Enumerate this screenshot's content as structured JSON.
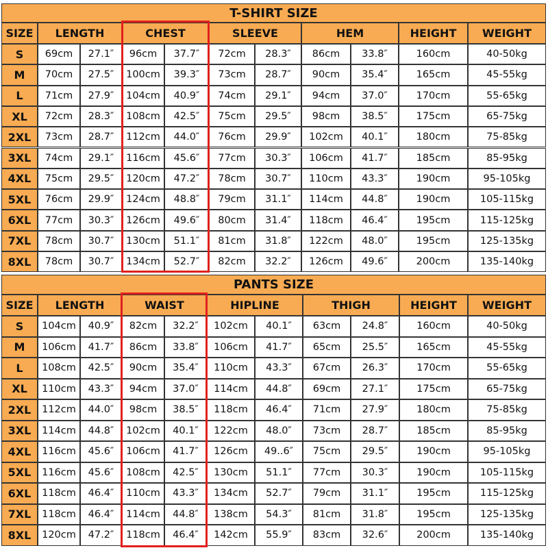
{
  "tshirt": {
    "title": "T-SHIRT SIZE",
    "headers": [
      "SIZE",
      "LENGTH",
      "CHEST",
      "SLEEVE",
      "HEM",
      "HEIGHT",
      "WEIGHT"
    ],
    "rows": [
      [
        "S",
        "69cm",
        "27.1″",
        "96cm",
        "37.7″",
        "72cm",
        "28.3″",
        "86cm",
        "33.8″",
        "160cm",
        "40-50kg"
      ],
      [
        "M",
        "70cm",
        "27.5″",
        "100cm",
        "39.3″",
        "73cm",
        "28.7″",
        "90cm",
        "35.4″",
        "165cm",
        "45-55kg"
      ],
      [
        "L",
        "71cm",
        "27.9″",
        "104cm",
        "40.9″",
        "74cm",
        "29.1″",
        "94cm",
        "37.0″",
        "170cm",
        "55-65kg"
      ],
      [
        "XL",
        "72cm",
        "28.3″",
        "108cm",
        "42.5″",
        "75cm",
        "29.5″",
        "98cm",
        "38.5″",
        "175cm",
        "65-75kg"
      ],
      [
        "2XL",
        "73cm",
        "28.7″",
        "112cm",
        "44.0″",
        "76cm",
        "29.9″",
        "102cm",
        "40.1″",
        "180cm",
        "75-85kg"
      ],
      [
        "3XL",
        "74cm",
        "29.1″",
        "116cm",
        "45.6″",
        "77cm",
        "30.3″",
        "106cm",
        "41.7″",
        "185cm",
        "85-95kg"
      ],
      [
        "4XL",
        "75cm",
        "29.5″",
        "120cm",
        "47.2″",
        "78cm",
        "30.7″",
        "110cm",
        "43.3″",
        "190cm",
        "95-105kg"
      ],
      [
        "5XL",
        "76cm",
        "29.9″",
        "124cm",
        "48.8″",
        "79cm",
        "31.1″",
        "114cm",
        "44.8″",
        "190cm",
        "105-115kg"
      ],
      [
        "6XL",
        "77cm",
        "30.3″",
        "126cm",
        "49.6″",
        "80cm",
        "31.4″",
        "118cm",
        "46.4″",
        "195cm",
        "115-125kg"
      ],
      [
        "7XL",
        "78cm",
        "30.7″",
        "130cm",
        "51.1″",
        "81cm",
        "31.8″",
        "122cm",
        "48.0″",
        "195cm",
        "125-135kg"
      ],
      [
        "8XL",
        "78cm",
        "30.7″",
        "134cm",
        "52.7″",
        "82cm",
        "32.2″",
        "126cm",
        "49.6″",
        "200cm",
        "135-140kg"
      ]
    ]
  },
  "pants": {
    "title": "PANTS SIZE",
    "headers": [
      "SIZE",
      "LENGTH",
      "WAIST",
      "HIPLINE",
      "THIGH",
      "HEIGHT",
      "WEIGHT"
    ],
    "rows": [
      [
        "S",
        "104cm",
        "40.9″",
        "82cm",
        "32.2″",
        "102cm",
        "40.1″",
        "63cm",
        "24.8″",
        "160cm",
        "40-50kg"
      ],
      [
        "M",
        "106cm",
        "41.7″",
        "86cm",
        "33.8″",
        "106cm",
        "41.7″",
        "65cm",
        "25.5″",
        "165cm",
        "45-55kg"
      ],
      [
        "L",
        "108cm",
        "42.5″",
        "90cm",
        "35.4″",
        "110cm",
        "43.3″",
        "67cm",
        "26.3″",
        "170cm",
        "55-65kg"
      ],
      [
        "XL",
        "110cm",
        "43.3″",
        "94cm",
        "37.0″",
        "114cm",
        "44.8″",
        "69cm",
        "27.1″",
        "175cm",
        "65-75kg"
      ],
      [
        "2XL",
        "112cm",
        "44.0″",
        "98cm",
        "38.5″",
        "118cm",
        "46.4″",
        "71cm",
        "27.9″",
        "180cm",
        "75-85kg"
      ],
      [
        "3XL",
        "114cm",
        "44.8″",
        "102cm",
        "40.1″",
        "122cm",
        "48.0″",
        "73cm",
        "28.7″",
        "185cm",
        "85-95kg"
      ],
      [
        "4XL",
        "116cm",
        "45.6″",
        "106cm",
        "41.7″",
        "126cm",
        "49..6″",
        "75cm",
        "29.5″",
        "190cm",
        "95-105kg"
      ],
      [
        "5XL",
        "116cm",
        "45.6″",
        "108cm",
        "42.5″",
        "130cm",
        "51.1″",
        "77cm",
        "30.3″",
        "190cm",
        "105-115kg"
      ],
      [
        "6XL",
        "118cm",
        "46.4″",
        "110cm",
        "43.3″",
        "134cm",
        "52.7″",
        "79cm",
        "31.1″",
        "195cm",
        "115-125kg"
      ],
      [
        "7XL",
        "118cm",
        "46.4″",
        "114cm",
        "44.8″",
        "138cm",
        "54.3″",
        "81cm",
        "31.8″",
        "195cm",
        "125-135kg"
      ],
      [
        "8XL",
        "120cm",
        "47.2″",
        "118cm",
        "46.4″",
        "142cm",
        "55.9″",
        "83cm",
        "32.6″",
        "200cm",
        "135-140kg"
      ]
    ]
  }
}
